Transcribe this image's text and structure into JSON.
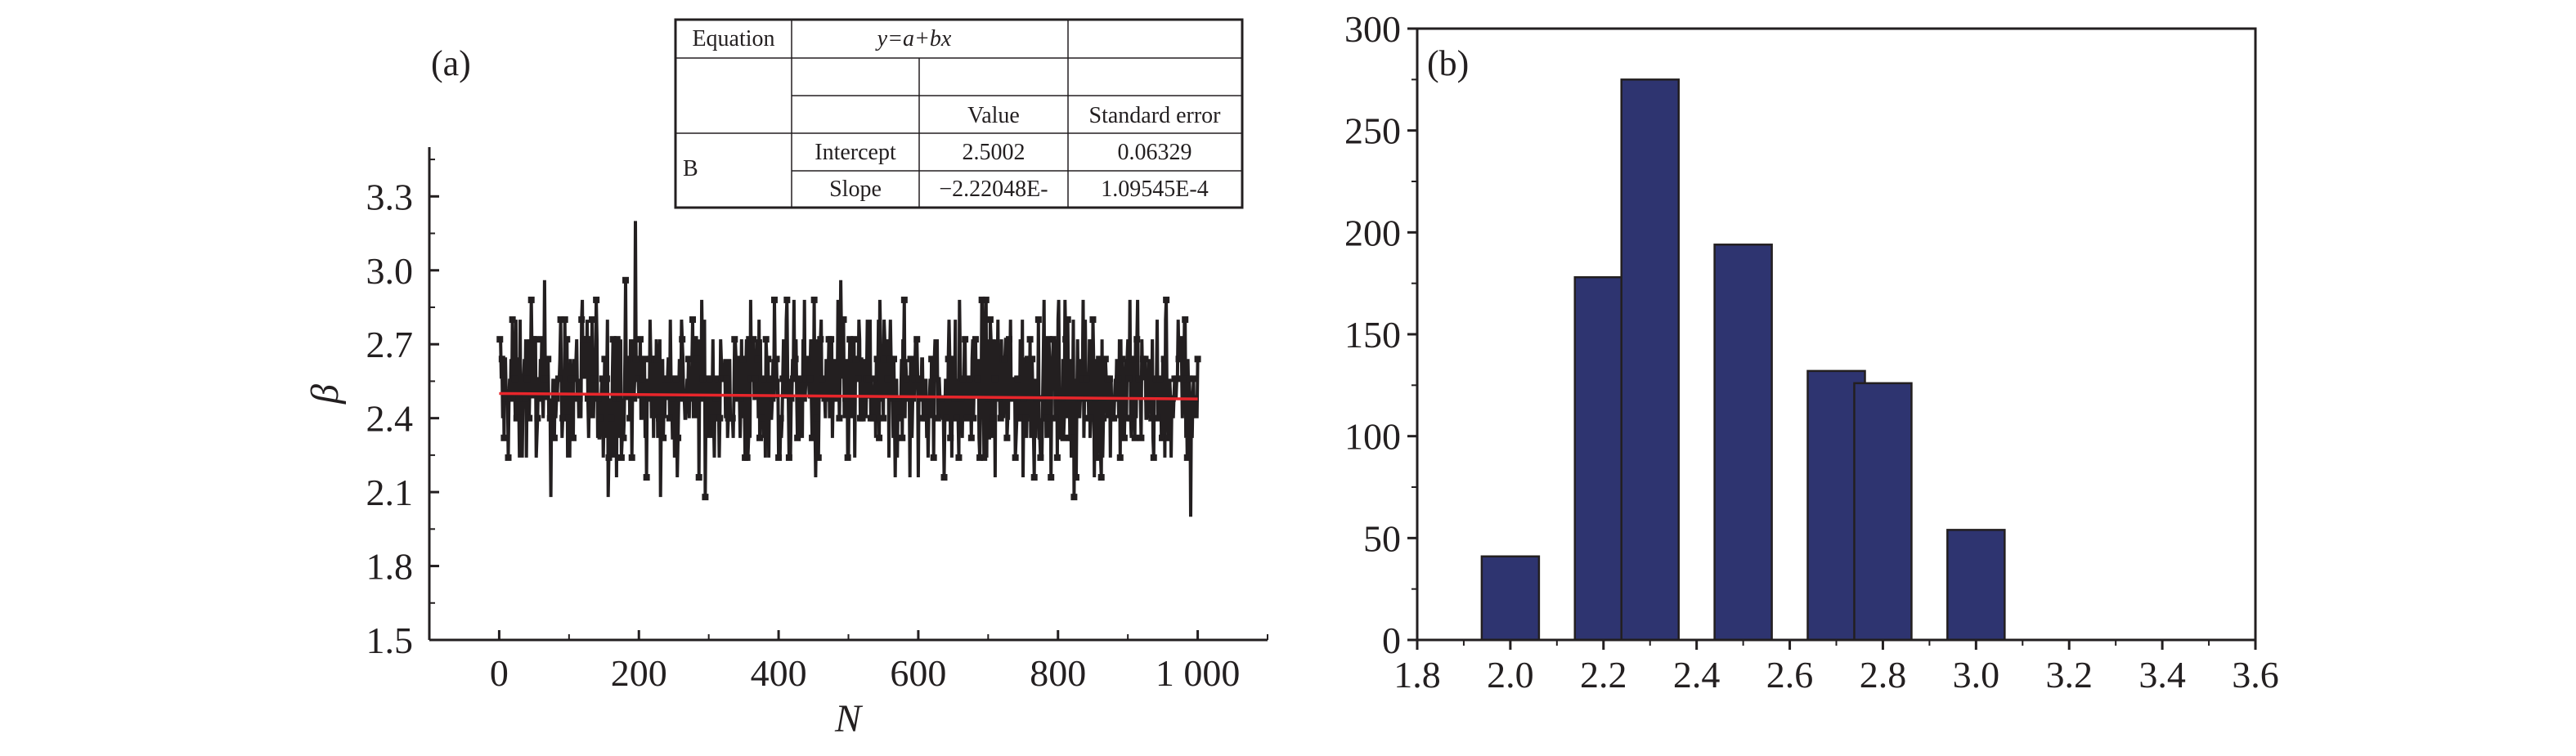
{
  "chart_data": [
    {
      "panel_label": "(a)",
      "type": "line",
      "xlabel": "N",
      "ylabel": "β",
      "xlim": [
        -100,
        1100
      ],
      "ylim": [
        1.5,
        3.5
      ],
      "xticks": [
        0,
        200,
        400,
        600,
        800,
        1000
      ],
      "xtick_labels": [
        "0",
        "200",
        "400",
        "600",
        "800",
        "1 000"
      ],
      "yticks": [
        1.5,
        1.8,
        2.1,
        2.4,
        2.7,
        3.0,
        3.3
      ],
      "ytick_labels": [
        "1.5",
        "1.8",
        "2.1",
        "2.4",
        "2.7",
        "3.0",
        "3.3"
      ],
      "series": [
        {
          "color": "#231f20",
          "marker": "square",
          "n_points": 1000,
          "value_range": [
            2.0,
            3.2
          ],
          "levels": [
            2.0,
            2.08,
            2.16,
            2.24,
            2.32,
            2.4,
            2.48,
            2.56,
            2.64,
            2.72,
            2.8,
            2.88,
            2.96,
            3.04
          ],
          "note_points": [
            {
              "x": 195,
              "y": 3.2
            },
            {
              "x": 990,
              "y": 2.0
            }
          ]
        },
        {
          "type": "fit_line",
          "color": "#e8262b",
          "intercept": 2.5002,
          "slope": -2.22048e-05,
          "x_range": [
            0,
            1000
          ]
        }
      ],
      "fit_table": {
        "rows": [
          [
            "Equation",
            "y=a+bx",
            ""
          ],
          [
            "",
            "",
            ""
          ],
          [
            "",
            "Value",
            "Standard error"
          ],
          [
            "Intercept",
            "2.5002",
            "0.06329"
          ],
          [
            "Slope",
            "−2.22048E-",
            "1.09545E-4"
          ]
        ],
        "group_label": "B"
      }
    },
    {
      "panel_label": "(b)",
      "type": "bar",
      "bar_color": "#2e3470",
      "categories": [
        2.0,
        2.2,
        2.3,
        2.5,
        2.7,
        2.8,
        3.0
      ],
      "values": [
        41,
        178,
        275,
        194,
        132,
        126,
        54
      ],
      "xlim": [
        1.8,
        3.6
      ],
      "ylim": [
        0,
        300
      ],
      "xticks": [
        1.8,
        2.0,
        2.2,
        2.4,
        2.6,
        2.8,
        3.0,
        3.2,
        3.4,
        3.6
      ],
      "xtick_labels": [
        "1.8",
        "2.0",
        "2.2",
        "2.4",
        "2.6",
        "2.8",
        "3.0",
        "3.2",
        "3.4",
        "3.6"
      ],
      "yticks": [
        0,
        50,
        100,
        150,
        200,
        250,
        300
      ],
      "ytick_labels": [
        "0",
        "50",
        "100",
        "150",
        "200",
        "250",
        "300"
      ],
      "xlabel": "",
      "ylabel": ""
    }
  ]
}
